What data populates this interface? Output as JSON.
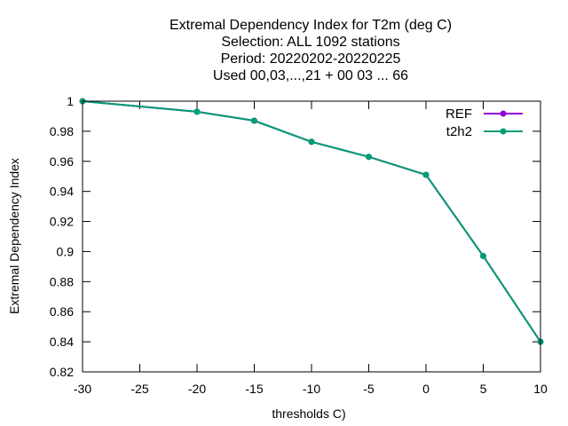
{
  "chart_data": {
    "type": "line",
    "title_lines": [
      "Extremal Dependency Index  for T2m (deg C)",
      "Selection: ALL   1092 stations",
      "Period: 20220202-20220225",
      "Used  00,03,...,21  + 00 03 ... 66"
    ],
    "xlabel": "thresholds C)",
    "ylabel": "Extremal Dependency Index",
    "xlim": [
      -30,
      10
    ],
    "ylim": [
      0.82,
      1.0
    ],
    "xticks": [
      -30,
      -25,
      -20,
      -15,
      -10,
      -5,
      0,
      5,
      10
    ],
    "yticks": [
      0.82,
      0.84,
      0.86,
      0.88,
      0.9,
      0.92,
      0.94,
      0.96,
      0.98,
      1.0
    ],
    "ytick_labels": [
      "0.82",
      "0.84",
      "0.86",
      "0.88",
      "0.9",
      "0.92",
      "0.94",
      "0.96",
      "0.98",
      "1"
    ],
    "legend_position": "top-right",
    "x": [
      -30,
      -20,
      -15,
      -10,
      -5,
      0,
      5,
      10
    ],
    "series": [
      {
        "name": "REF",
        "color": "#9400d3",
        "values": [
          1.0,
          0.993,
          0.987,
          0.973,
          0.963,
          0.951,
          0.897,
          0.84
        ]
      },
      {
        "name": "t2h2",
        "color": "#009e73",
        "values": [
          1.0,
          0.993,
          0.987,
          0.973,
          0.963,
          0.951,
          0.897,
          0.84
        ]
      }
    ]
  }
}
